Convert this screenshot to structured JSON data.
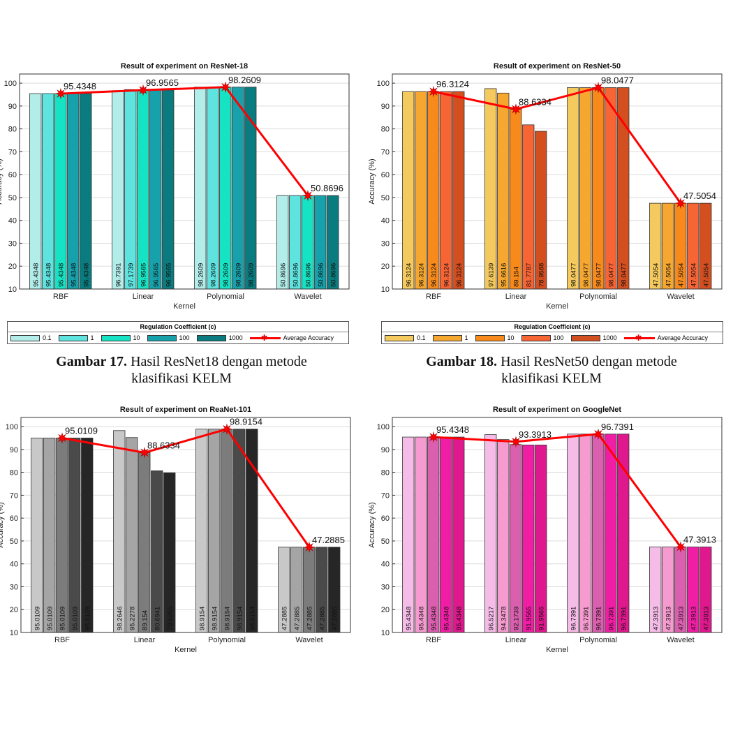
{
  "chart_data": [
    {
      "type": "bar",
      "title": "Result of experiment on ResNet-18",
      "xlabel": "Kernel",
      "ylabel": "Accuracy (%)",
      "ylim": [
        10,
        104
      ],
      "yticks": [
        10,
        20,
        30,
        40,
        50,
        60,
        70,
        80,
        90,
        100
      ],
      "grid": true,
      "categories": [
        "RBF",
        "Linear",
        "Polynomial",
        "Wavelet"
      ],
      "colors": [
        "#b2ede9",
        "#5ee3df",
        "#16e3c3",
        "#17a1ab",
        "#0a7b7e"
      ],
      "series": [
        {
          "name": "0.1",
          "values": [
            95.4348,
            96.7391,
            98.2609,
            50.8696
          ],
          "labels": [
            "95.4348",
            "96.7391",
            "98.2609",
            "50.8696"
          ]
        },
        {
          "name": "1",
          "values": [
            95.4348,
            97.1739,
            98.2609,
            50.8696
          ],
          "labels": [
            "95.4348",
            "97.1739",
            "98.2609",
            "50.8696"
          ]
        },
        {
          "name": "10",
          "values": [
            95.4348,
            96.9565,
            98.2609,
            50.8696
          ],
          "labels": [
            "95.4348",
            "96.9565",
            "98.2609",
            "50.8696"
          ]
        },
        {
          "name": "100",
          "values": [
            95.4348,
            96.9565,
            98.2609,
            50.8696
          ],
          "labels": [
            "95.4348",
            "96.9565",
            "98.2609",
            "50.8696"
          ]
        },
        {
          "name": "1000",
          "values": [
            95.4348,
            96.9565,
            98.2609,
            50.8696
          ],
          "labels": [
            "95.4348",
            "96.9565",
            "98.2609",
            "50.8696"
          ]
        }
      ],
      "average": {
        "name": "Average Accuracy",
        "values": [
          95.4348,
          96.9565,
          98.2609,
          50.8696
        ],
        "labels": [
          "95.4348",
          "96.9565",
          "98.2609",
          "50.8696"
        ]
      }
    },
    {
      "type": "bar",
      "title": "Result of experiment on ResNet-50",
      "xlabel": "Kernel",
      "ylabel": "Accuracy (%)",
      "ylim": [
        10,
        104
      ],
      "yticks": [
        10,
        20,
        30,
        40,
        50,
        60,
        70,
        80,
        90,
        100
      ],
      "grid": true,
      "categories": [
        "RBF",
        "Linear",
        "Polynomial",
        "Wavelet"
      ],
      "colors": [
        "#f4c95d",
        "#f5a72f",
        "#f88a1c",
        "#f86534",
        "#d44f20"
      ],
      "series": [
        {
          "name": "0.1",
          "values": [
            96.3124,
            97.6139,
            98.0477,
            47.5054
          ],
          "labels": [
            "96.3124",
            "97.6139",
            "98.0477",
            "47.5054"
          ]
        },
        {
          "name": "1",
          "values": [
            96.3124,
            95.6616,
            98.0477,
            47.5054
          ],
          "labels": [
            "96.3124",
            "95.6616",
            "98.0477",
            "47.5054"
          ]
        },
        {
          "name": "10",
          "values": [
            96.3124,
            89.154,
            98.0477,
            47.5054
          ],
          "labels": [
            "96.3124",
            "89.154",
            "98.0477",
            "47.5054"
          ]
        },
        {
          "name": "100",
          "values": [
            96.3124,
            81.7787,
            98.0477,
            47.5054
          ],
          "labels": [
            "96.3124",
            "81.7787",
            "98.0477",
            "47.5054"
          ]
        },
        {
          "name": "1000",
          "values": [
            96.3124,
            78.9588,
            98.0477,
            47.5054
          ],
          "labels": [
            "96.3124",
            "78.9588",
            "98.0477",
            "47.5054"
          ]
        }
      ],
      "average": {
        "name": "Average Accuracy",
        "values": [
          96.3124,
          88.6334,
          98.0477,
          47.5054
        ],
        "labels": [
          "96.3124",
          "88.6334",
          "98.0477",
          "47.5054"
        ]
      }
    },
    {
      "type": "bar",
      "title": "Result of experiment on ReaNet-101",
      "xlabel": "Kernel",
      "ylabel": "Accuracy (%)",
      "ylim": [
        10,
        104
      ],
      "yticks": [
        10,
        20,
        30,
        40,
        50,
        60,
        70,
        80,
        90,
        100
      ],
      "grid": true,
      "categories": [
        "RBF",
        "Linear",
        "Polynomial",
        "Wavelet"
      ],
      "colors": [
        "#c8c8c8",
        "#a5a5a5",
        "#7c7c7c",
        "#4a4a4a",
        "#262626"
      ],
      "series": [
        {
          "name": "0.1",
          "values": [
            95.0109,
            98.2646,
            98.9154,
            47.2885
          ],
          "labels": [
            "95.0109",
            "98.2646",
            "98.9154",
            "47.2885"
          ]
        },
        {
          "name": "1",
          "values": [
            95.0109,
            95.2278,
            98.9154,
            47.2885
          ],
          "labels": [
            "95.0109",
            "95.2278",
            "98.9154",
            "47.2885"
          ]
        },
        {
          "name": "10",
          "values": [
            95.0109,
            89.154,
            98.9154,
            47.2885
          ],
          "labels": [
            "95.0109",
            "89.154",
            "98.9154",
            "47.2885"
          ]
        },
        {
          "name": "100",
          "values": [
            95.0109,
            80.6941,
            98.9154,
            47.2885
          ],
          "labels": [
            "95.0109",
            "80.6941",
            "98.9154",
            "47.2885"
          ]
        },
        {
          "name": "1000",
          "values": [
            95.0109,
            79.8265,
            98.9154,
            47.2885
          ],
          "labels": [
            "95.0109",
            "79.8265",
            "98.9154",
            "47.2885"
          ]
        }
      ],
      "average": {
        "name": "Average Accuracy",
        "values": [
          95.0109,
          88.6334,
          98.9154,
          47.2885
        ],
        "labels": [
          "95.0109",
          "88.6334",
          "98.9154",
          "47.2885"
        ]
      }
    },
    {
      "type": "bar",
      "title": "Result of experiment on GoogleNet",
      "xlabel": "Kernel",
      "ylabel": "Accuracy (%)",
      "ylim": [
        10,
        104
      ],
      "yticks": [
        10,
        20,
        30,
        40,
        50,
        60,
        70,
        80,
        90,
        100
      ],
      "grid": true,
      "categories": [
        "RBF",
        "Linear",
        "Polynomial",
        "Wavelet"
      ],
      "colors": [
        "#f5bce8",
        "#f59bcf",
        "#da5fae",
        "#f01ea5",
        "#e0188e"
      ],
      "series": [
        {
          "name": "0.1",
          "values": [
            95.4348,
            96.5217,
            96.7391,
            47.3913
          ],
          "labels": [
            "95.4348",
            "96.5217",
            "96.7391",
            "47.3913"
          ]
        },
        {
          "name": "1",
          "values": [
            95.4348,
            94.3478,
            96.7391,
            47.3913
          ],
          "labels": [
            "95.4348",
            "94.3478",
            "96.7391",
            "47.3913"
          ]
        },
        {
          "name": "10",
          "values": [
            95.4348,
            92.1739,
            96.7391,
            47.3913
          ],
          "labels": [
            "95.4348",
            "92.1739",
            "96.7391",
            "47.3913"
          ]
        },
        {
          "name": "100",
          "values": [
            95.4348,
            91.9565,
            96.7391,
            47.3913
          ],
          "labels": [
            "95.4348",
            "91.9565",
            "96.7391",
            "47.3913"
          ]
        },
        {
          "name": "1000",
          "values": [
            95.4348,
            91.9565,
            96.7391,
            47.3913
          ],
          "labels": [
            "95.4348",
            "91.9565",
            "96.7391",
            "47.3913"
          ]
        }
      ],
      "average": {
        "name": "Average Accuracy",
        "values": [
          95.4348,
          93.3913,
          96.7391,
          47.3913
        ],
        "labels": [
          "95.4348",
          "93.3913",
          "96.7391",
          "47.3913"
        ]
      }
    }
  ],
  "legends": [
    {
      "title": "Regulation Coefficient (c)",
      "items": [
        {
          "label": "0.1",
          "color": "#b2ede9"
        },
        {
          "label": "1",
          "color": "#5ee3df"
        },
        {
          "label": "10",
          "color": "#16e3c3"
        },
        {
          "label": "100",
          "color": "#17a1ab"
        },
        {
          "label": "1000",
          "color": "#0a7b7e"
        }
      ],
      "average_label": "Average Accuracy"
    },
    {
      "title": "Regulation Coefficient (c)",
      "items": [
        {
          "label": "0.1",
          "color": "#f4c95d"
        },
        {
          "label": "1",
          "color": "#f5a72f"
        },
        {
          "label": "10",
          "color": "#f88a1c"
        },
        {
          "label": "100",
          "color": "#f86534"
        },
        {
          "label": "1000",
          "color": "#d44f20"
        }
      ],
      "average_label": "Average Accuracy"
    }
  ],
  "captions": [
    {
      "label": "Gambar 17.",
      "text": "Hasil ResNet18 dengan metode",
      "line2": "klasifikasi KELM"
    },
    {
      "label": "Gambar 18.",
      "text": "Hasil ResNet50 dengan metode",
      "line2": "klasifikasi KELM"
    }
  ],
  "average_color": "#ff0000"
}
